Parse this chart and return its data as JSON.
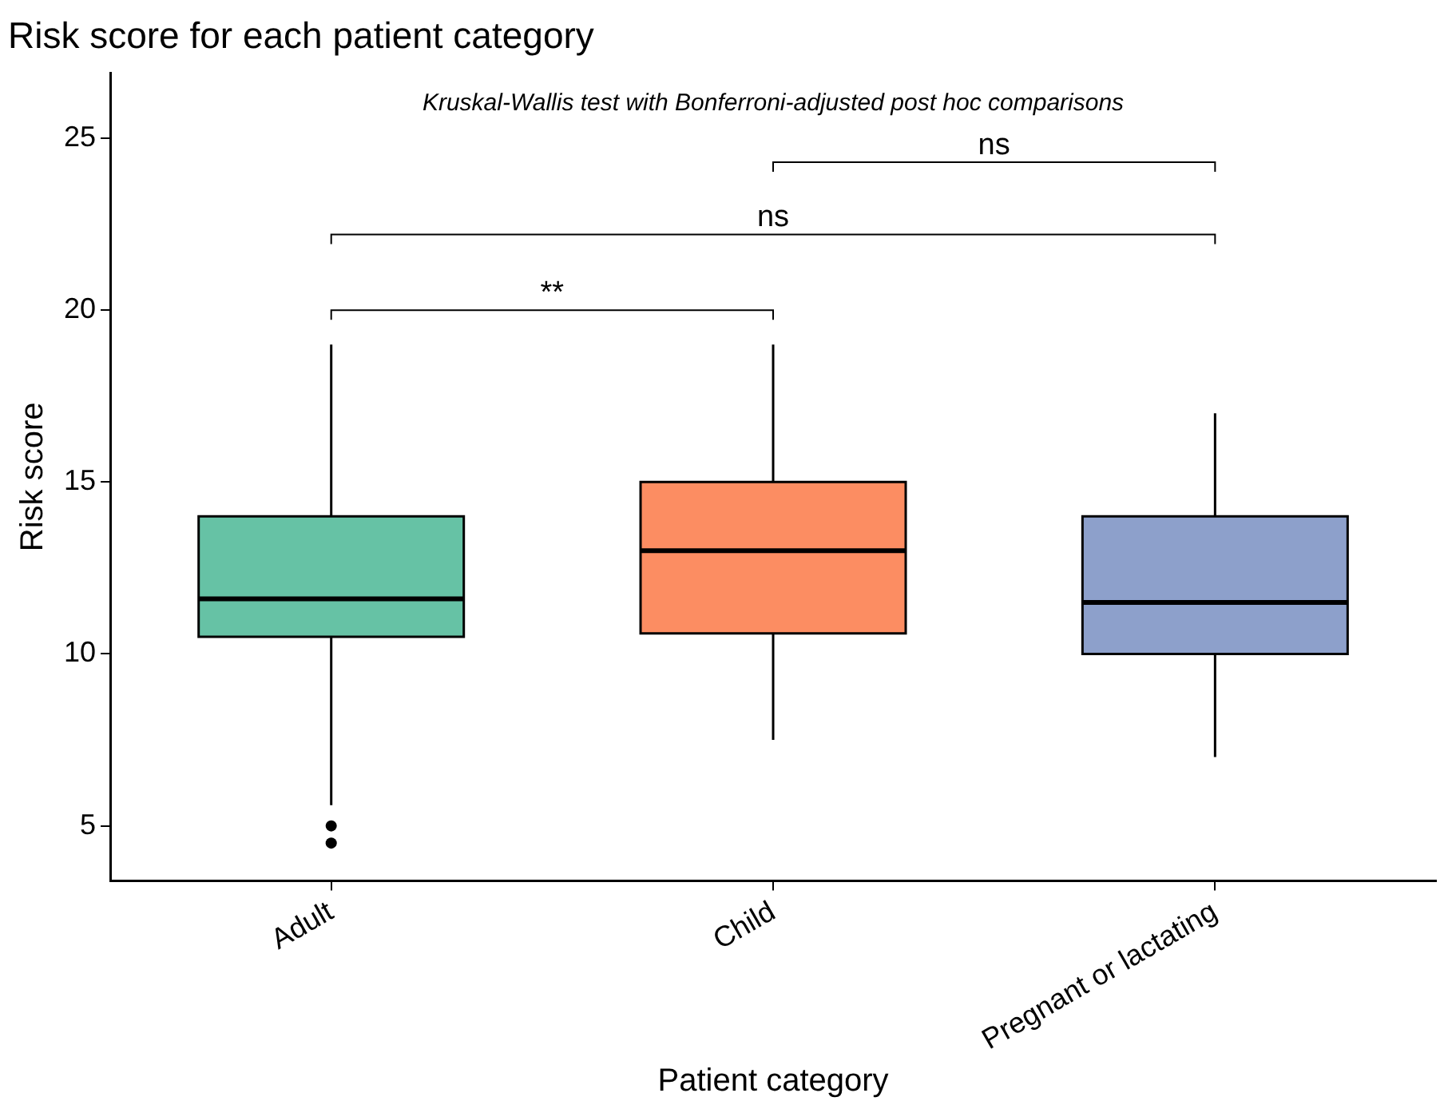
{
  "chart_data": {
    "type": "box",
    "title": "Risk score for each patient category",
    "xlabel": "Patient category",
    "ylabel": "Risk score",
    "categories": [
      "Adult",
      "Child",
      "Pregnant or lactating"
    ],
    "colors": [
      "#66c2a5",
      "#fc8d62",
      "#8da0cb"
    ],
    "boxes": [
      {
        "low": 5.6,
        "q1": 10.5,
        "median": 11.6,
        "q3": 14,
        "high": 19,
        "outliers": [
          5,
          4.5
        ]
      },
      {
        "low": 7.5,
        "q1": 10.6,
        "median": 13,
        "q3": 15,
        "high": 19
      },
      {
        "low": 7,
        "q1": 10,
        "median": 11.5,
        "q3": 14,
        "high": 17
      }
    ],
    "ylim": [
      3.4,
      26.9
    ],
    "yticks": [
      5,
      10,
      15,
      20,
      25
    ],
    "annotations": [
      "Kruskal-Wallis test with Bonferroni-adjusted post hoc comparisons",
      "**",
      "ns",
      "ns"
    ],
    "legend": false
  }
}
